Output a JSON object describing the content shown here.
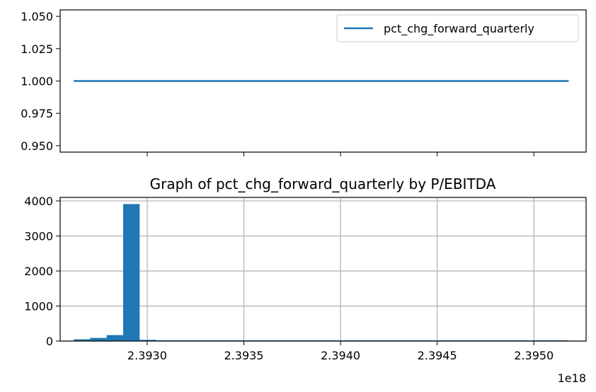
{
  "chart_data": [
    {
      "type": "line",
      "title": "",
      "xlabel": "",
      "ylabel": "",
      "x_range": [
        2.39262e+18,
        2.39518e+18
      ],
      "ylim": [
        0.945,
        1.055
      ],
      "yticks": [
        "0.950",
        "0.975",
        "1.000",
        "1.025",
        "1.050"
      ],
      "ytick_values": [
        0.95,
        0.975,
        1.0,
        1.025,
        1.05
      ],
      "xtick_values": [
        2.393e+18,
        2.3935e+18,
        2.394e+18,
        2.3945e+18,
        2.395e+18
      ],
      "grid": false,
      "legend": {
        "position": "upper right",
        "entries": [
          "pct_chg_forward_quarterly"
        ]
      },
      "series": [
        {
          "name": "pct_chg_forward_quarterly",
          "color": "#1f77b4",
          "x": [
            2.39262e+18,
            2.39518e+18
          ],
          "y": [
            1.0,
            1.0
          ]
        }
      ]
    },
    {
      "type": "bar",
      "subtype": "histogram",
      "title": "Graph of pct_chg_forward_quarterly by P/EBITDA",
      "xlabel": "",
      "ylabel": "",
      "x_offset_label": "1e18",
      "xlim": [
        2.39255,
        2.39527
      ],
      "ylim": [
        0,
        4100
      ],
      "yticks": [
        "0",
        "1000",
        "2000",
        "3000",
        "4000"
      ],
      "ytick_values": [
        0,
        1000,
        2000,
        3000,
        4000
      ],
      "xticks": [
        "2.3930",
        "2.3935",
        "2.3940",
        "2.3945",
        "2.3950"
      ],
      "xtick_values": [
        2.393,
        2.3935,
        2.394,
        2.3945,
        2.395
      ],
      "grid": true,
      "color": "#1f77b4",
      "bin_start": 2.39262,
      "bin_width": 8.53e-05,
      "values": [
        50,
        90,
        170,
        3910,
        35,
        20,
        20,
        20,
        20,
        20,
        20,
        20,
        20,
        20,
        20,
        20,
        20,
        20,
        20,
        20,
        20,
        20,
        20,
        20,
        20,
        20,
        20,
        20,
        20,
        20
      ]
    }
  ]
}
